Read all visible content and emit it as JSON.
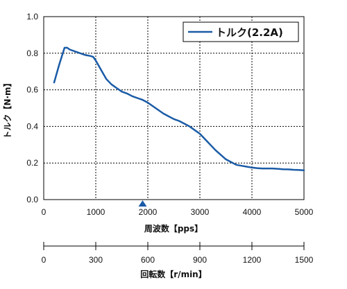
{
  "chart_data": {
    "type": "line",
    "xlabel": "周波数【pps】",
    "ylabel": "トルク【N·m】",
    "xlim": [
      0,
      5000
    ],
    "ylim": [
      0,
      1.0
    ],
    "x_ticks": [
      0,
      1000,
      2000,
      3000,
      4000,
      5000
    ],
    "y_ticks": [
      "0.0",
      "0.2",
      "0.4",
      "0.6",
      "0.8",
      "1.0"
    ],
    "grid": true,
    "legend_position": "top-right",
    "series": [
      {
        "name": "トルク(2.2A)",
        "color": "#1a5ba6",
        "x": [
          200,
          300,
          400,
          450,
          500,
          600,
          700,
          800,
          900,
          950,
          1000,
          1100,
          1200,
          1300,
          1400,
          1500,
          1600,
          1700,
          1800,
          1900,
          2000,
          2100,
          2200,
          2300,
          2400,
          2500,
          2600,
          2700,
          2800,
          2900,
          3000,
          3100,
          3200,
          3300,
          3400,
          3500,
          3600,
          3700,
          3800,
          3900,
          4000,
          4100,
          4200,
          4300,
          4400,
          4500,
          4600,
          4700,
          4800,
          4900,
          5000
        ],
        "y": [
          0.64,
          0.74,
          0.83,
          0.83,
          0.82,
          0.81,
          0.8,
          0.79,
          0.785,
          0.78,
          0.76,
          0.71,
          0.66,
          0.63,
          0.61,
          0.59,
          0.58,
          0.565,
          0.555,
          0.545,
          0.53,
          0.51,
          0.49,
          0.47,
          0.455,
          0.44,
          0.43,
          0.415,
          0.4,
          0.38,
          0.36,
          0.33,
          0.3,
          0.27,
          0.245,
          0.22,
          0.205,
          0.19,
          0.185,
          0.18,
          0.175,
          0.172,
          0.17,
          0.17,
          0.17,
          0.168,
          0.166,
          0.165,
          0.163,
          0.162,
          0.16
        ]
      }
    ],
    "marker": {
      "x": 1900
    },
    "secondary_axis": {
      "label": "回転数【r/min】",
      "range": [
        0,
        1500
      ],
      "ticks": [
        0,
        300,
        600,
        900,
        1200,
        1500
      ]
    }
  }
}
